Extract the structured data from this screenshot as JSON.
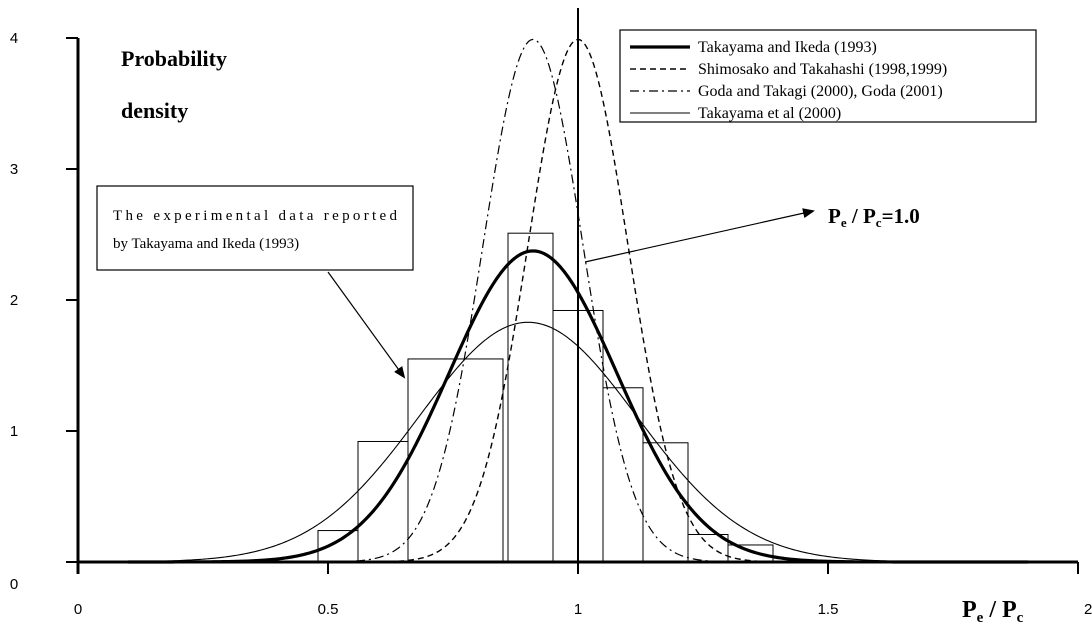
{
  "chart_data": {
    "type": "line",
    "title": "",
    "ylabel_line1": "Probability",
    "ylabel_line2": "density",
    "xlabel_main": "P",
    "xlabel_sub1": "e",
    "xlabel_sep": " / P",
    "xlabel_sub2": "c",
    "xlim": [
      0,
      2
    ],
    "ylim": [
      0,
      4
    ],
    "xticks": [
      {
        "value": 0,
        "label": "0"
      },
      {
        "value": 0.5,
        "label": "0.5"
      },
      {
        "value": 1,
        "label": "1"
      },
      {
        "value": 1.5,
        "label": "1.5"
      },
      {
        "value": 2,
        "label": "2"
      }
    ],
    "yticks": [
      {
        "value": 0,
        "label": "0"
      },
      {
        "value": 1,
        "label": "1"
      },
      {
        "value": 2,
        "label": "2"
      },
      {
        "value": 3,
        "label": "3"
      },
      {
        "value": 4,
        "label": "4"
      }
    ],
    "grid": false,
    "legend_position": "top-right",
    "series": [
      {
        "name": "Takayama and Ikeda (1993)",
        "style": "thick-solid",
        "mean": 0.91,
        "sd": 0.168
      },
      {
        "name": "Shimosako and Takahashi (1998,1999)",
        "style": "dashed",
        "mean": 1.0,
        "sd": 0.1
      },
      {
        "name": "Goda and Takagi (2000), Goda (2001)",
        "style": "dash-dot",
        "mean": 0.91,
        "sd": 0.1
      },
      {
        "name": "Takayama et al (2000)",
        "style": "thin-solid",
        "mean": 0.9,
        "sd": 0.218
      }
    ],
    "histogram": {
      "bins": [
        {
          "x0": 0.48,
          "x1": 0.56,
          "value": 0.24
        },
        {
          "x0": 0.56,
          "x1": 0.66,
          "value": 0.92
        },
        {
          "x0": 0.66,
          "x1": 0.85,
          "value": 1.55
        },
        {
          "x0": 0.86,
          "x1": 0.95,
          "value": 2.51
        },
        {
          "x0": 0.95,
          "x1": 1.05,
          "value": 1.92
        },
        {
          "x0": 1.05,
          "x1": 1.13,
          "value": 1.33
        },
        {
          "x0": 1.13,
          "x1": 1.22,
          "value": 0.91
        },
        {
          "x0": 1.22,
          "x1": 1.3,
          "value": 0.21
        },
        {
          "x0": 1.3,
          "x1": 1.39,
          "value": 0.13
        }
      ]
    },
    "reference_line": {
      "x": 1.0
    },
    "callout_text_line1": "The experimental data reported",
    "callout_text_line2": "by Takayama and Ikeda (1993)",
    "annotation": {
      "main": "P",
      "sub1": "e",
      "sep": " / P",
      "sub2": "c",
      "suffix": "=1.0"
    }
  }
}
